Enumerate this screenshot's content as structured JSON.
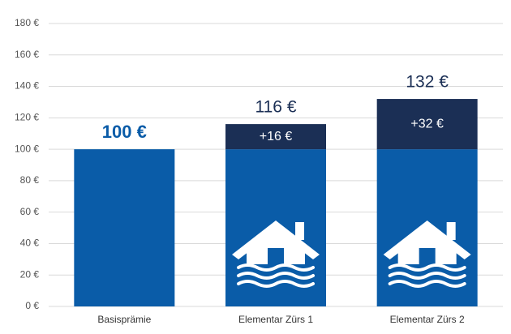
{
  "chart_data": {
    "type": "stacked-bar",
    "categories": [
      "Basisprämie",
      "Elementar Zürs 1",
      "Elementar Zürs 2"
    ],
    "series": [
      {
        "color": "#0a5ca8",
        "values": [
          100,
          100,
          100
        ]
      },
      {
        "color": "#1b2f55",
        "values": [
          0,
          16,
          32
        ],
        "value_labels": [
          null,
          "+16 €",
          "+32 €"
        ]
      }
    ],
    "totals": {
      "values": [
        100,
        116,
        132
      ],
      "labels": [
        "100 €",
        "116 €",
        "132 €"
      ]
    },
    "ylim": [
      0,
      180
    ],
    "yticks": [
      {
        "value": 0,
        "label": "0 €"
      },
      {
        "value": 20,
        "label": "20 €"
      },
      {
        "value": 40,
        "label": "40 €"
      },
      {
        "value": 60,
        "label": "60 €"
      },
      {
        "value": 80,
        "label": "80 €"
      },
      {
        "value": 100,
        "label": "100 €"
      },
      {
        "value": 120,
        "label": "120 €"
      },
      {
        "value": 140,
        "label": "140 €"
      },
      {
        "value": 160,
        "label": "160 €"
      },
      {
        "value": 180,
        "label": "180 €"
      }
    ],
    "grid": true
  }
}
